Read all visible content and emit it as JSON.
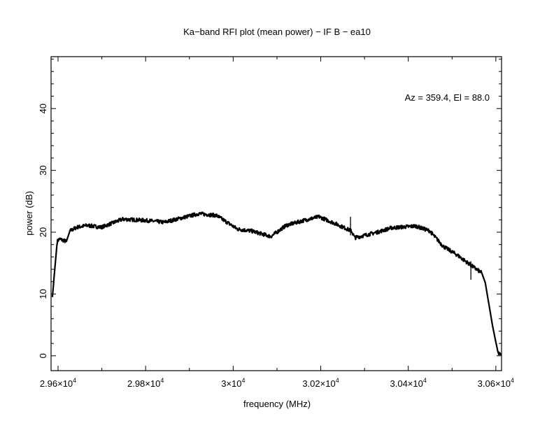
{
  "chart_data": {
    "type": "line",
    "title": "Ka−band RFI plot (mean power) − IF B − ea10",
    "xlabel": "frequency (MHz)",
    "ylabel": "power (dB)",
    "annotation": "Az = 359.4, El = 88.0",
    "xlim": [
      29584,
      30613
    ],
    "ylim": [
      -2.4,
      48.4
    ],
    "x_ticks": [
      29600,
      29800,
      30000,
      30200,
      30400,
      30600
    ],
    "x_tick_labels": [
      {
        "mant": "2.96×10",
        "exp": "4"
      },
      {
        "mant": "2.98×10",
        "exp": "4"
      },
      {
        "mant": "3×10",
        "exp": "4"
      },
      {
        "mant": "3.02×10",
        "exp": "4"
      },
      {
        "mant": "3.04×10",
        "exp": "4"
      },
      {
        "mant": "3.06×10",
        "exp": "4"
      }
    ],
    "y_ticks": [
      0,
      10,
      20,
      30,
      40
    ],
    "y_tick_labels": [
      "0",
      "10",
      "20",
      "30",
      "40"
    ],
    "grid": false,
    "series": [
      {
        "name": "mean power",
        "color": "#000000",
        "x": [
          29587,
          29598,
          29603,
          29619,
          29627,
          29643,
          29667,
          29699,
          29747,
          29802,
          29842,
          29882,
          29922,
          29962,
          29986,
          30010,
          30042,
          30086,
          30121,
          30161,
          30196,
          30233,
          30270,
          30278,
          30329,
          30361,
          30417,
          30449,
          30480,
          30512,
          30544,
          30568,
          30576,
          30592,
          30605,
          30611
        ],
        "y": [
          9.5,
          18.5,
          18.9,
          18.5,
          20.2,
          20.8,
          21.1,
          20.8,
          22.1,
          21.9,
          21.6,
          22.3,
          23.0,
          22.7,
          21.6,
          20.5,
          20.2,
          19.3,
          21.1,
          21.9,
          22.5,
          21.4,
          20.2,
          19.1,
          20.0,
          20.7,
          21.0,
          20.2,
          17.7,
          16.3,
          14.6,
          13.4,
          11.8,
          5.0,
          0.5,
          0.1
        ]
      }
    ],
    "spikes": [
      {
        "x": 30268,
        "y": 22.5
      },
      {
        "x": 30543,
        "y": 15.3
      }
    ]
  }
}
